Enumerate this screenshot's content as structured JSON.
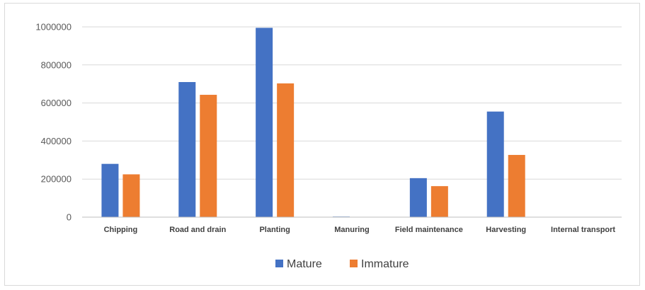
{
  "chart_data": {
    "type": "bar",
    "categories": [
      "Chipping",
      "Road and drain",
      "Planting",
      "Manuring",
      "Field maintenance",
      "Harvesting",
      "Internal transport"
    ],
    "series": [
      {
        "name": "Mature",
        "color": "#4472c4",
        "values": [
          280000,
          710000,
          995000,
          3000,
          205000,
          555000,
          1000
        ]
      },
      {
        "name": "Immature",
        "color": "#ed7d31",
        "values": [
          225000,
          643000,
          703000,
          0,
          163000,
          327000,
          0
        ]
      }
    ],
    "yticks": [
      "0",
      "200000",
      "400000",
      "600000",
      "800000",
      "1000000"
    ],
    "ylim": [
      0,
      1000000
    ],
    "grid": true,
    "legend": "bottom",
    "title": "",
    "xlabel": "",
    "ylabel": ""
  }
}
